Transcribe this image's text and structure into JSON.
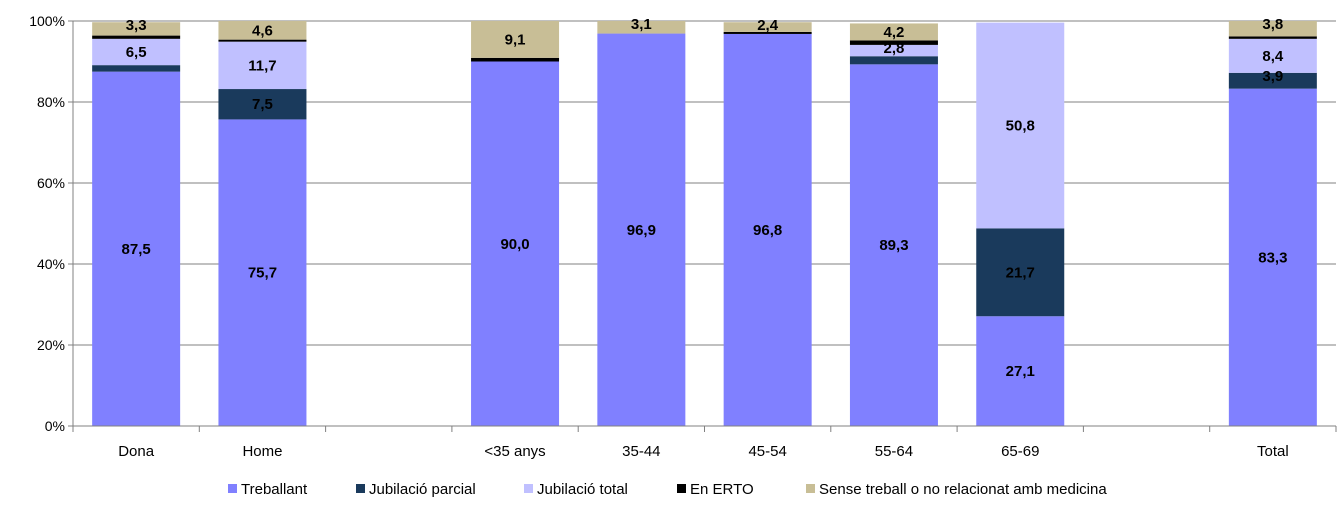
{
  "chart_data": {
    "type": "bar",
    "stacked": true,
    "ylim": [
      0,
      100
    ],
    "y_ticks": [
      "0%",
      "20%",
      "40%",
      "60%",
      "80%",
      "100%"
    ],
    "grid": true,
    "legend_position": "bottom",
    "categories": [
      "Dona",
      "Home",
      "",
      "<35 anys",
      "35-44",
      "45-54",
      "55-64",
      "65-69",
      "",
      "Total"
    ],
    "series": [
      {
        "name": "Treballant",
        "color": "#8080ff",
        "values": [
          87.5,
          75.7,
          null,
          90.0,
          96.9,
          96.8,
          89.3,
          27.1,
          null,
          83.3
        ],
        "labels": [
          "87,5",
          "75,7",
          "",
          "90,0",
          "96,9",
          "96,8",
          "89,3",
          "27,1",
          "",
          "83,3"
        ]
      },
      {
        "name": "Jubilació parcial",
        "color": "#1a3a5c",
        "values": [
          1.6,
          7.5,
          null,
          0,
          0,
          0,
          2.0,
          21.7,
          null,
          3.9
        ],
        "labels": [
          "",
          "7,5",
          "",
          "",
          "",
          "",
          "",
          "21,7",
          "",
          "3,9"
        ]
      },
      {
        "name": "Jubilació total",
        "color": "#c0c0ff",
        "values": [
          6.5,
          11.7,
          null,
          0,
          0,
          0,
          2.8,
          50.8,
          null,
          8.4
        ],
        "labels": [
          "6,5",
          "11,7",
          "",
          "",
          "",
          "",
          "2,8",
          "50,8",
          "",
          "8,4"
        ]
      },
      {
        "name": "En ERTO",
        "color": "#000000",
        "values": [
          0.8,
          0.5,
          null,
          0.9,
          0,
          0.5,
          1.1,
          0,
          null,
          0.6
        ],
        "labels": [
          "",
          "",
          "",
          "",
          "",
          "",
          "",
          "",
          "",
          ""
        ]
      },
      {
        "name": "Sense treball o no relacionat amb medicina",
        "color": "#c8be96",
        "values": [
          3.3,
          4.6,
          null,
          9.1,
          3.1,
          2.4,
          4.2,
          0,
          null,
          3.8
        ],
        "labels": [
          "3,3",
          "4,6",
          "",
          "9,1",
          "3,1",
          "2,4",
          "4,2",
          "",
          "",
          "3,8"
        ]
      }
    ]
  }
}
